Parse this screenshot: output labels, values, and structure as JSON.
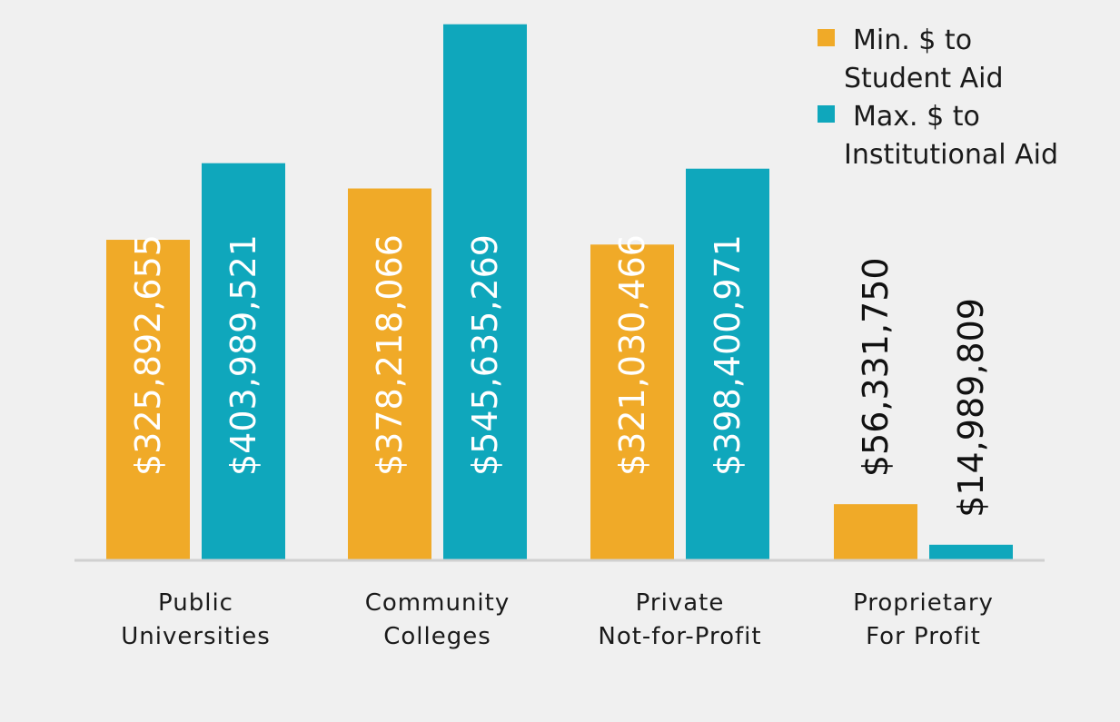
{
  "chart_data": {
    "type": "bar",
    "categories": [
      [
        "Public",
        "Universities"
      ],
      [
        "Community",
        "Colleges"
      ],
      [
        "Private",
        "Not-for-Profit"
      ],
      [
        "Proprietary",
        "For Profit"
      ]
    ],
    "series": [
      {
        "name": [
          "Min. $ to",
          "Student Aid"
        ],
        "color": "#f0aa28",
        "values": [
          325892655,
          378218066,
          321030466,
          56331750
        ],
        "labels": [
          "$325,892,655",
          "$378,218,066",
          "$321,030,466",
          "$56,331,750"
        ]
      },
      {
        "name": [
          "Max. $ to",
          "Institutional Aid"
        ],
        "color": "#0fa7bc",
        "values": [
          403989521,
          545635269,
          398400971,
          14989809
        ],
        "labels": [
          "$403,989,521",
          "$545,635,269",
          "$398,400,971",
          "$14,989,809"
        ]
      }
    ],
    "ylim": [
      0,
      550000000
    ],
    "grid": false,
    "legend": "top-right",
    "axis_color": "#d0d0d0",
    "label_inside_color": "#ffffff",
    "label_outside_color": "#111111"
  }
}
